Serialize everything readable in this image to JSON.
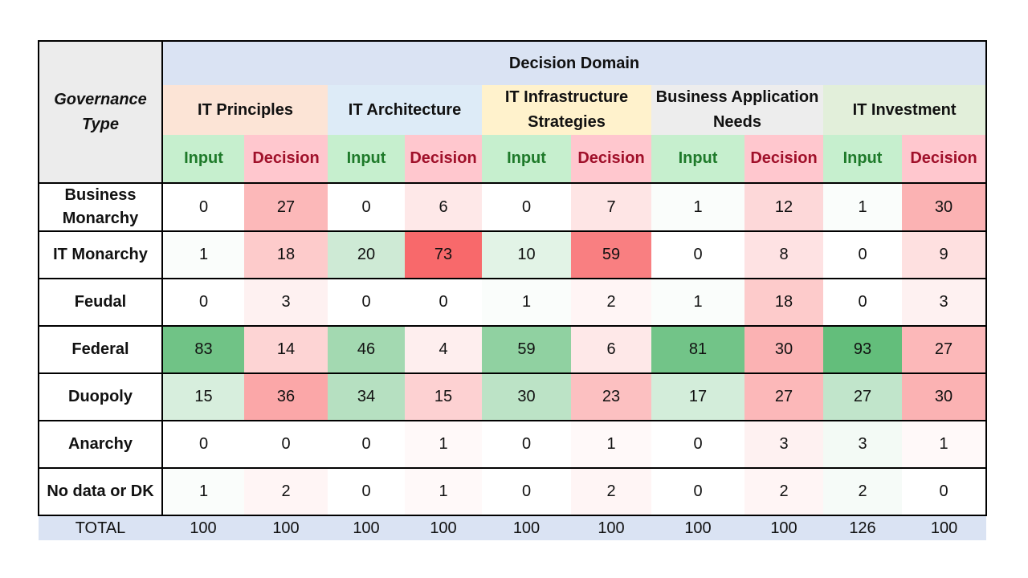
{
  "chart_data": {
    "type": "table",
    "title": "",
    "header": {
      "row_header_label": "Governance Type",
      "domain_label": "Decision Domain",
      "sub_labels": [
        "Input",
        "Decision"
      ]
    },
    "domains": [
      {
        "name": "IT Principles",
        "color": "#fce4d6"
      },
      {
        "name": "IT Architecture",
        "color": "#ddebf7"
      },
      {
        "name": "IT Infrastructure Strategies",
        "color": "#fff2cc"
      },
      {
        "name": "Business Application Needs",
        "color": "#ededed"
      },
      {
        "name": "IT Investment",
        "color": "#e2efda"
      }
    ],
    "rows": [
      {
        "label": "Business Monarchy",
        "values": [
          0,
          27,
          0,
          6,
          0,
          7,
          1,
          12,
          1,
          30
        ]
      },
      {
        "label": "IT Monarchy",
        "values": [
          1,
          18,
          20,
          73,
          10,
          59,
          0,
          8,
          0,
          9
        ]
      },
      {
        "label": "Feudal",
        "values": [
          0,
          3,
          0,
          0,
          1,
          2,
          1,
          18,
          0,
          3
        ]
      },
      {
        "label": "Federal",
        "values": [
          83,
          14,
          46,
          4,
          59,
          6,
          81,
          30,
          93,
          27
        ]
      },
      {
        "label": "Duopoly",
        "values": [
          15,
          36,
          34,
          15,
          30,
          23,
          17,
          27,
          27,
          30
        ]
      },
      {
        "label": "Anarchy",
        "values": [
          0,
          0,
          0,
          1,
          0,
          1,
          0,
          3,
          3,
          1
        ]
      },
      {
        "label": "No data or DK",
        "values": [
          1,
          2,
          0,
          1,
          0,
          2,
          0,
          2,
          2,
          0
        ]
      }
    ],
    "total": {
      "label": "TOTAL",
      "values": [
        100,
        100,
        100,
        100,
        100,
        100,
        100,
        100,
        126,
        100
      ]
    },
    "color_scale": {
      "input_low": "#ffffff",
      "input_high": "#63be7b",
      "decision_low": "#ffffff",
      "decision_high": "#f8696b"
    }
  }
}
